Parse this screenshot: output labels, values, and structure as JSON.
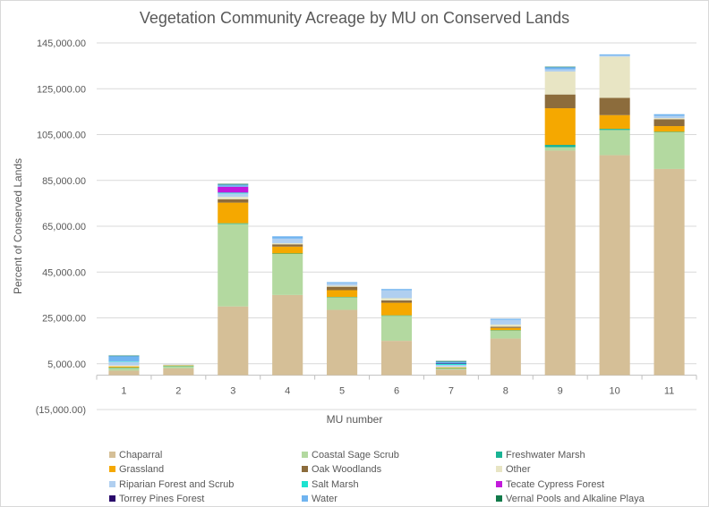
{
  "chart_data": {
    "type": "bar",
    "stacked": true,
    "title": "Vegetation Community Acreage by MU on Conserved Lands",
    "xlabel": "MU number",
    "ylabel": "Percent of Conserved Lands",
    "ylim": [
      -15000,
      145000
    ],
    "yticks": [
      -15000,
      5000,
      25000,
      45000,
      65000,
      85000,
      105000,
      125000,
      145000
    ],
    "ytick_labels": [
      "(15,000.00)",
      "5,000.00",
      "25,000.00",
      "45,000.00",
      "65,000.00",
      "85,000.00",
      "105,000.00",
      "125,000.00",
      "145,000.00"
    ],
    "grid": true,
    "legend_position": "bottom",
    "categories": [
      "1",
      "2",
      "3",
      "4",
      "5",
      "6",
      "7",
      "8",
      "9",
      "10",
      "11"
    ],
    "series": [
      {
        "name": "Chaparral",
        "color": "#d5bf97",
        "values": [
          2000,
          3000,
          30000,
          35000,
          28500,
          15000,
          2500,
          16000,
          98000,
          96000,
          90000
        ]
      },
      {
        "name": "Coastal Sage Scrub",
        "color": "#b3d9a0",
        "values": [
          1200,
          1000,
          36000,
          18000,
          5500,
          11000,
          500,
          3500,
          1500,
          11000,
          16000
        ]
      },
      {
        "name": "Freshwater Marsh",
        "color": "#19b394",
        "values": [
          100,
          50,
          300,
          100,
          100,
          100,
          100,
          100,
          1000,
          500,
          200
        ]
      },
      {
        "name": "Grassland",
        "color": "#f5a800",
        "values": [
          500,
          300,
          9000,
          3000,
          3000,
          5500,
          300,
          1000,
          16000,
          6000,
          2500
        ]
      },
      {
        "name": "Oak Woodlands",
        "color": "#8c6c3c",
        "values": [
          0,
          0,
          1500,
          1000,
          1500,
          1000,
          0,
          500,
          6000,
          7500,
          3000
        ]
      },
      {
        "name": "Other",
        "color": "#e8e5c4",
        "values": [
          500,
          100,
          1000,
          500,
          500,
          1000,
          300,
          1000,
          10000,
          18000,
          500
        ]
      },
      {
        "name": "Riparian Forest and Scrub",
        "color": "#b0cff0",
        "values": [
          1500,
          200,
          1500,
          2000,
          1000,
          3500,
          800,
          2000,
          1000,
          500,
          1000
        ]
      },
      {
        "name": "Salt Marsh",
        "color": "#1de3d0",
        "values": [
          200,
          0,
          400,
          0,
          0,
          0,
          400,
          0,
          0,
          0,
          0
        ]
      },
      {
        "name": "Tecate Cypress Forest",
        "color": "#c21adb",
        "values": [
          0,
          0,
          2500,
          0,
          0,
          0,
          0,
          0,
          0,
          0,
          0
        ]
      },
      {
        "name": "Torrey Pines Forest",
        "color": "#2a0a6b",
        "values": [
          0,
          0,
          0,
          0,
          0,
          0,
          200,
          0,
          0,
          0,
          0
        ]
      },
      {
        "name": "Water",
        "color": "#70b4f0",
        "values": [
          2500,
          0,
          1000,
          1000,
          500,
          500,
          800,
          500,
          1000,
          500,
          700
        ]
      },
      {
        "name": "Vernal Pools and Alkaline Playa",
        "color": "#127a4a",
        "values": [
          50,
          0,
          300,
          0,
          0,
          0,
          300,
          0,
          100,
          0,
          0
        ]
      }
    ]
  }
}
